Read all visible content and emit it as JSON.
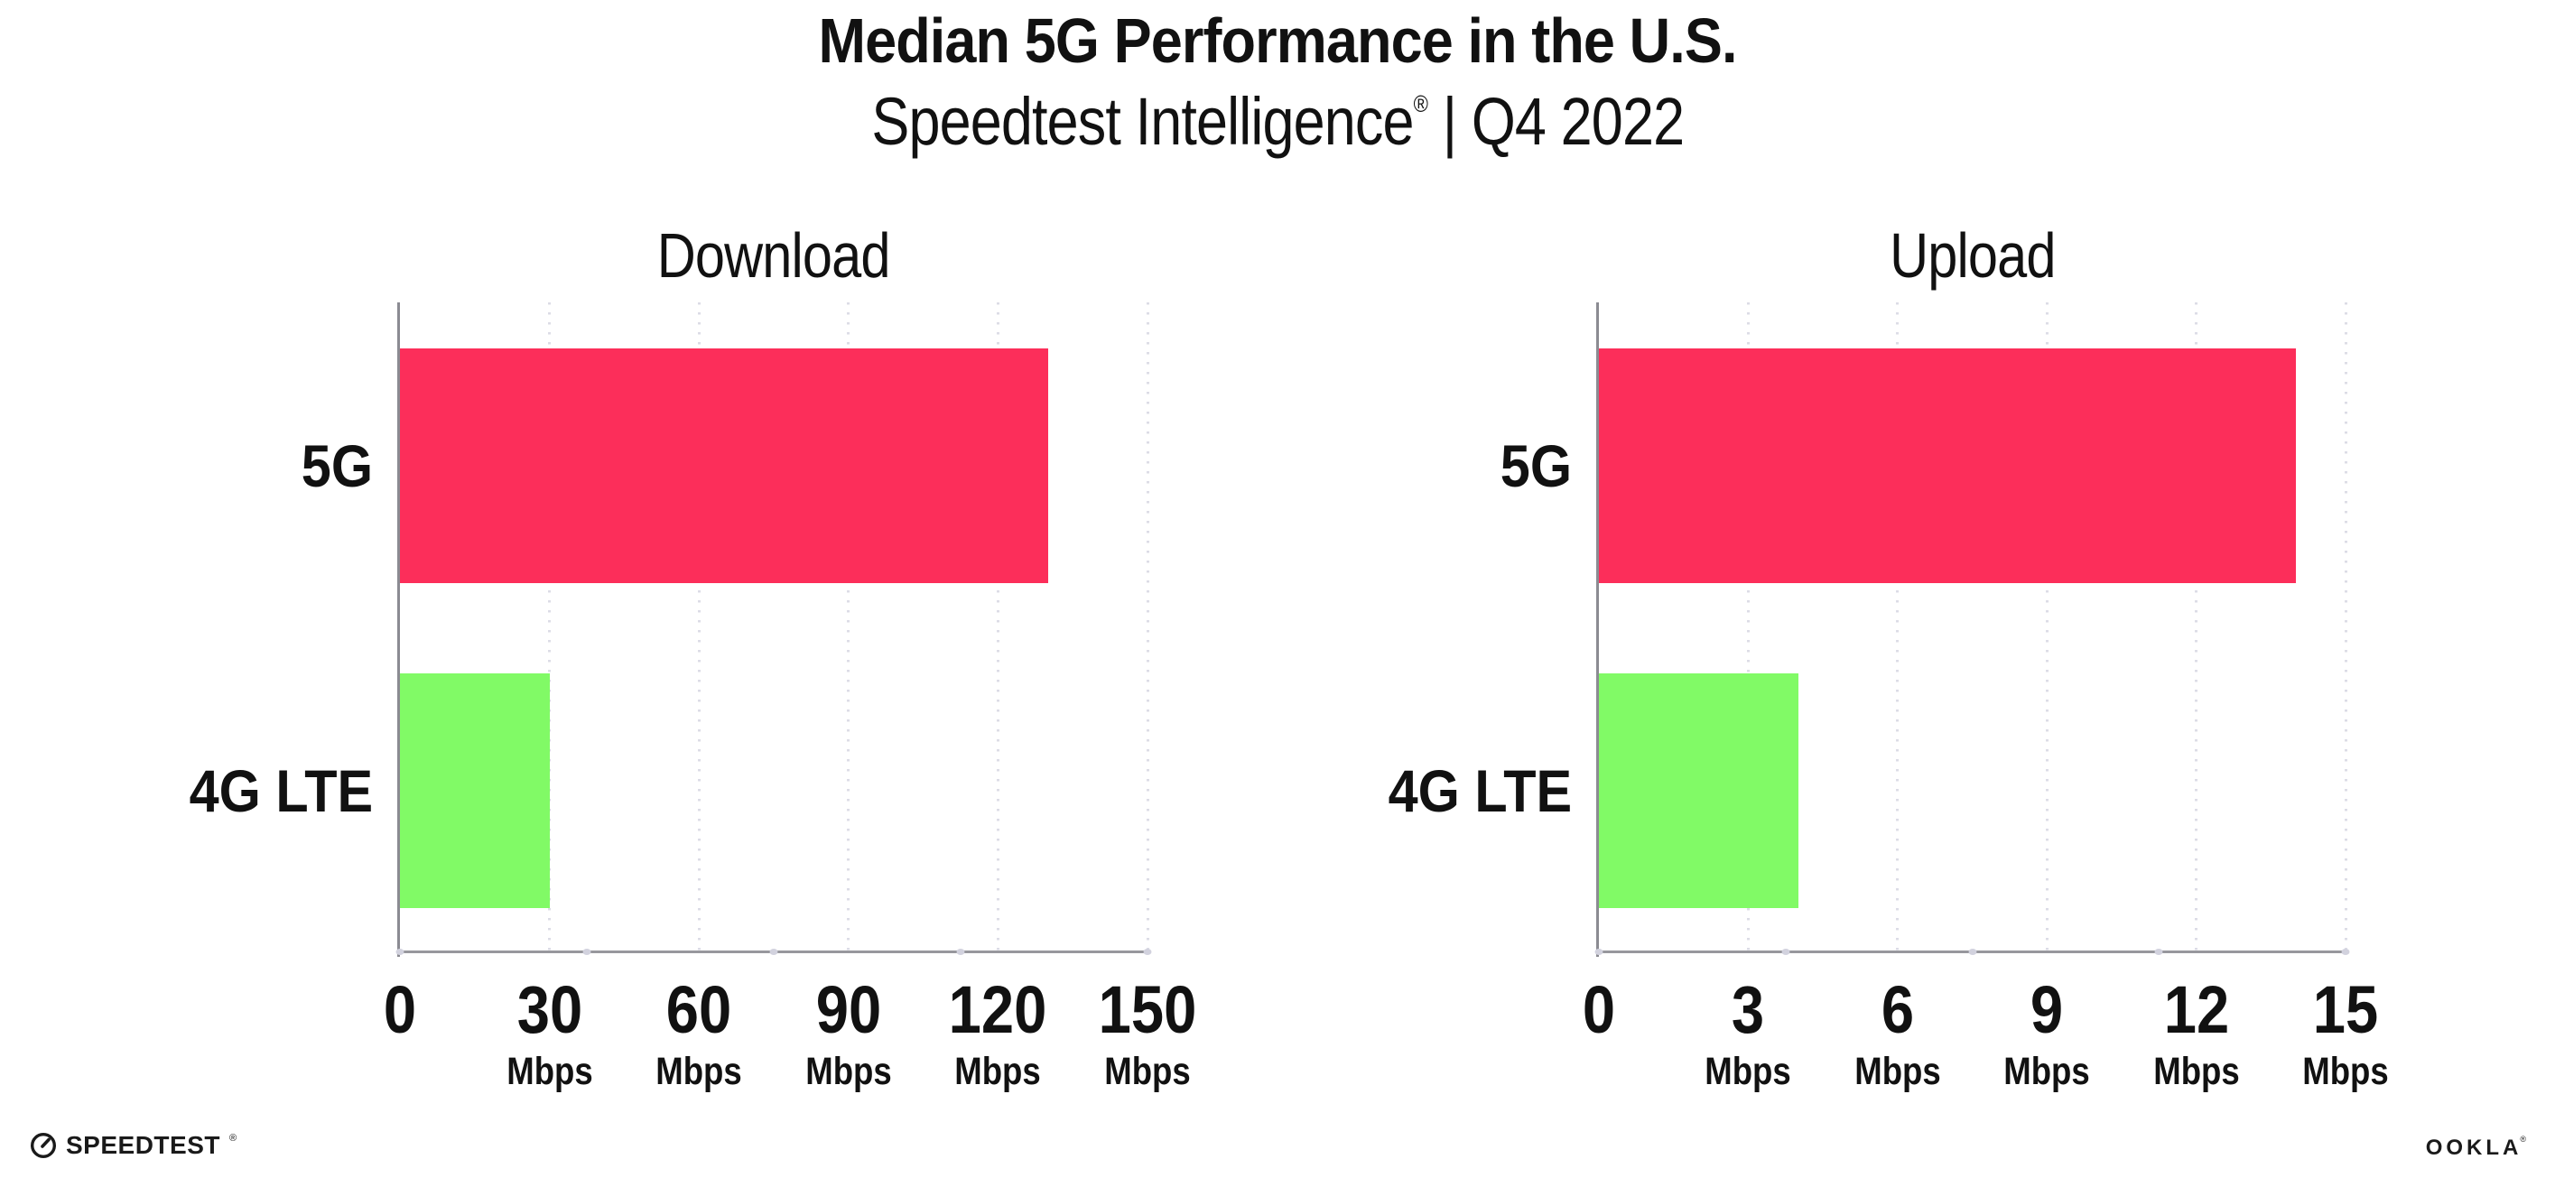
{
  "header": {
    "title": "Median 5G Performance in the U.S.",
    "subtitle_brand": "Speedtest Intelligence",
    "subtitle_mark": "®",
    "subtitle_rest": " | Q4 2022"
  },
  "chart_data": [
    {
      "type": "bar",
      "orientation": "horizontal",
      "title": "Download",
      "categories": [
        "5G",
        "4G LTE"
      ],
      "values": [
        130,
        30
      ],
      "unit": "Mbps",
      "xlim": [
        0,
        150
      ],
      "xticks": [
        0,
        30,
        60,
        90,
        120,
        150
      ],
      "bar_colors": [
        "#FC2E5A",
        "#81FA66"
      ],
      "grid": "dotted-vertical",
      "legend": "none"
    },
    {
      "type": "bar",
      "orientation": "horizontal",
      "title": "Upload",
      "categories": [
        "5G",
        "4G LTE"
      ],
      "values": [
        14,
        4
      ],
      "unit": "Mbps",
      "xlim": [
        0,
        15
      ],
      "xticks": [
        0,
        3,
        6,
        9,
        12,
        15
      ],
      "bar_colors": [
        "#FC2E5A",
        "#81FA66"
      ],
      "grid": "dotted-vertical",
      "legend": "none"
    }
  ],
  "footer": {
    "speedtest_label": "SPEEDTEST",
    "speedtest_mark": "®",
    "ookla_label": "OOKLA",
    "ookla_mark": "®"
  },
  "colors": {
    "bar_5g": "#FC2E5A",
    "bar_4g_lte": "#81FA66",
    "gridline": "#DCDCE6",
    "axis": "#8B8B92",
    "text": "#111111",
    "background": "#FFFFFF"
  }
}
